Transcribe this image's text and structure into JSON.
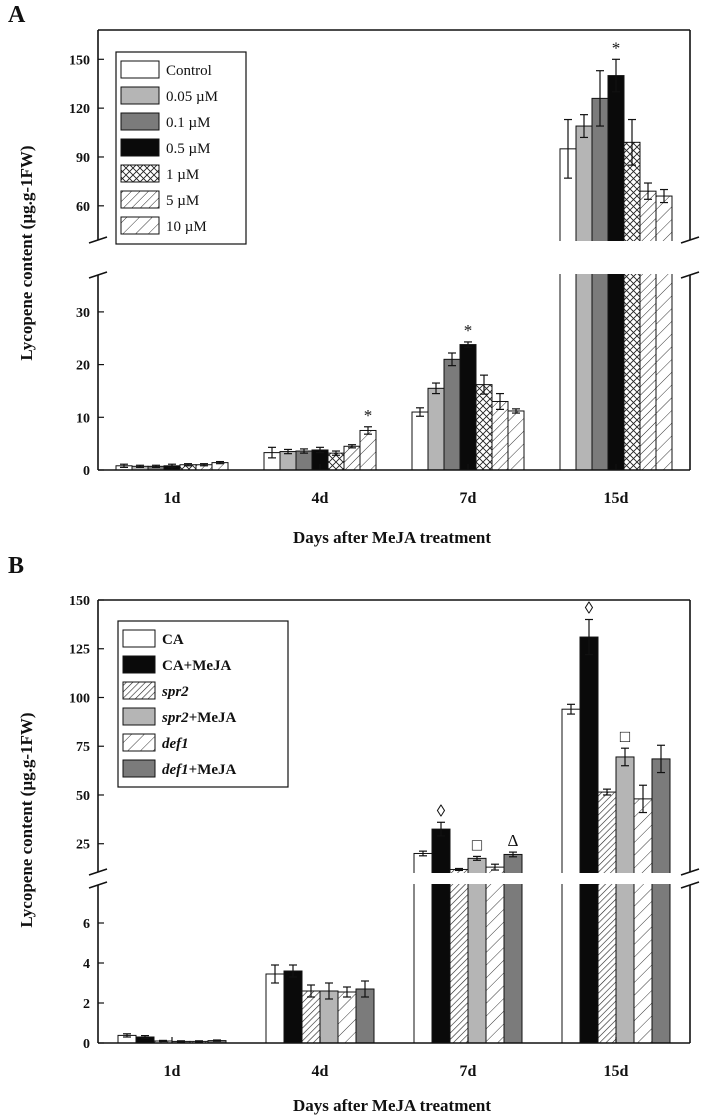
{
  "chart_data": [
    {
      "type": "bar",
      "panel_label": "A",
      "categories": [
        "1d",
        "4d",
        "7d",
        "15d"
      ],
      "xlabel": "Days after MeJA treatment",
      "ylabel": "Lycopene content (µg.g-1FW)",
      "y_lower_range": [
        0,
        37
      ],
      "y_lower_ticks": [
        "0",
        "10",
        "20",
        "30"
      ],
      "y_upper_range": [
        39,
        168
      ],
      "y_upper_ticks": [
        "60",
        "90",
        "120",
        "150"
      ],
      "series": [
        {
          "name": "Control",
          "pattern": "white",
          "values": [
            0.8,
            3.3,
            11.0,
            95
          ],
          "errors": [
            0.3,
            1.0,
            0.8,
            18
          ]
        },
        {
          "name": "0.05 µM",
          "pattern": "lightgray",
          "values": [
            0.7,
            3.5,
            15.5,
            109
          ],
          "errors": [
            0.2,
            0.4,
            1.0,
            7
          ]
        },
        {
          "name": "0.1 µM",
          "pattern": "gray",
          "values": [
            0.7,
            3.6,
            21.0,
            126
          ],
          "errors": [
            0.2,
            0.4,
            1.2,
            17
          ]
        },
        {
          "name": "0.5 µM",
          "pattern": "black",
          "values": [
            0.8,
            3.8,
            23.8,
            140
          ],
          "errors": [
            0.3,
            0.5,
            0.5,
            10
          ]
        },
        {
          "name": "1 µM",
          "pattern": "crosshatch",
          "values": [
            1.0,
            3.2,
            16.2,
            99
          ],
          "errors": [
            0.2,
            0.4,
            1.8,
            14
          ]
        },
        {
          "name": "5 µM",
          "pattern": "diag",
          "values": [
            1.0,
            4.5,
            13.0,
            69
          ],
          "errors": [
            0.2,
            0.3,
            1.5,
            5
          ]
        },
        {
          "name": "10 µM",
          "pattern": "diagsparse",
          "values": [
            1.4,
            7.5,
            11.2,
            66
          ],
          "errors": [
            0.2,
            0.7,
            0.4,
            4
          ]
        }
      ],
      "annotations": [
        {
          "category": "4d",
          "series": "10 µM",
          "symbol": "*"
        },
        {
          "category": "7d",
          "series": "0.5 µM",
          "symbol": "*"
        },
        {
          "category": "15d",
          "series": "0.5 µM",
          "symbol": "*"
        }
      ]
    },
    {
      "type": "bar",
      "panel_label": "B",
      "categories": [
        "1d",
        "4d",
        "7d",
        "15d"
      ],
      "xlabel": "Days after MeJA treatment",
      "ylabel": "Lycopene content (µg.g-1FW)",
      "y_lower_range": [
        0,
        7.9
      ],
      "y_lower_ticks": [
        "0",
        "2",
        "4",
        "6"
      ],
      "y_upper_range": [
        10.5,
        150
      ],
      "y_upper_ticks": [
        "25",
        "50",
        "75",
        "100",
        "125",
        "150"
      ],
      "series": [
        {
          "name": "CA",
          "suffix": "",
          "italic": false,
          "pattern": "white",
          "values": [
            0.38,
            3.45,
            20.0,
            94
          ],
          "errors": [
            0.08,
            0.45,
            1.2,
            2.5
          ]
        },
        {
          "name": "CA",
          "suffix": "+MeJA",
          "italic": false,
          "pattern": "black",
          "values": [
            0.3,
            3.6,
            32.5,
            131
          ],
          "errors": [
            0.07,
            0.3,
            3.5,
            9
          ]
        },
        {
          "name": "spr2",
          "suffix": "",
          "italic": true,
          "pattern": "diagdense",
          "values": [
            0.1,
            2.6,
            11.8,
            51.5
          ],
          "errors": [
            0.03,
            0.3,
            0.5,
            1.5
          ]
        },
        {
          "name": "spr2",
          "suffix": "+MeJA",
          "italic": true,
          "pattern": "lightgray",
          "values": [
            0.08,
            2.6,
            17.5,
            69.5
          ],
          "errors": [
            0.03,
            0.4,
            1.0,
            4.5
          ]
        },
        {
          "name": "def1",
          "suffix": "",
          "italic": true,
          "pattern": "diagsparse",
          "values": [
            0.08,
            2.55,
            13.0,
            48
          ],
          "errors": [
            0.03,
            0.25,
            1.5,
            7
          ]
        },
        {
          "name": "def1",
          "suffix": "+MeJA",
          "italic": true,
          "pattern": "gray",
          "values": [
            0.12,
            2.7,
            19.5,
            68.5
          ],
          "errors": [
            0.03,
            0.4,
            1.2,
            7
          ]
        }
      ],
      "annotations": [
        {
          "category": "7d",
          "series_index": 1,
          "symbol": "◊"
        },
        {
          "category": "7d",
          "series_index": 3,
          "symbol": "□"
        },
        {
          "category": "7d",
          "series_index": 5,
          "symbol": "Δ"
        },
        {
          "category": "15d",
          "series_index": 1,
          "symbol": "◊"
        },
        {
          "category": "15d",
          "series_index": 3,
          "symbol": "□"
        }
      ]
    }
  ]
}
